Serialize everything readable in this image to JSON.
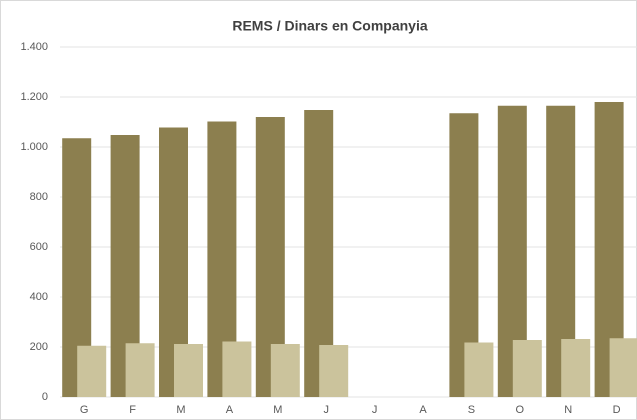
{
  "chart_data": {
    "type": "bar",
    "title": "REMS / Dinars en Companyia",
    "categories": [
      "G",
      "F",
      "M",
      "A",
      "M",
      "J",
      "J",
      "A",
      "S",
      "O",
      "N",
      "D"
    ],
    "series": [
      {
        "color": "#8c7f4f",
        "values": [
          1035,
          1048,
          1078,
          1102,
          1120,
          1148,
          null,
          null,
          1135,
          1165,
          1165,
          1180
        ]
      },
      {
        "color": "#cbc39c",
        "values": [
          205,
          215,
          212,
          222,
          212,
          208,
          null,
          null,
          218,
          228,
          232,
          235
        ]
      }
    ],
    "ylim": [
      0,
      1400
    ],
    "yticks": [
      0,
      200,
      400,
      600,
      800,
      {
        "value": 1000,
        "label": "1.000"
      },
      {
        "value": 1200,
        "label": "1.200"
      },
      {
        "value": 1400,
        "label": "1.400"
      }
    ],
    "grid": true
  }
}
